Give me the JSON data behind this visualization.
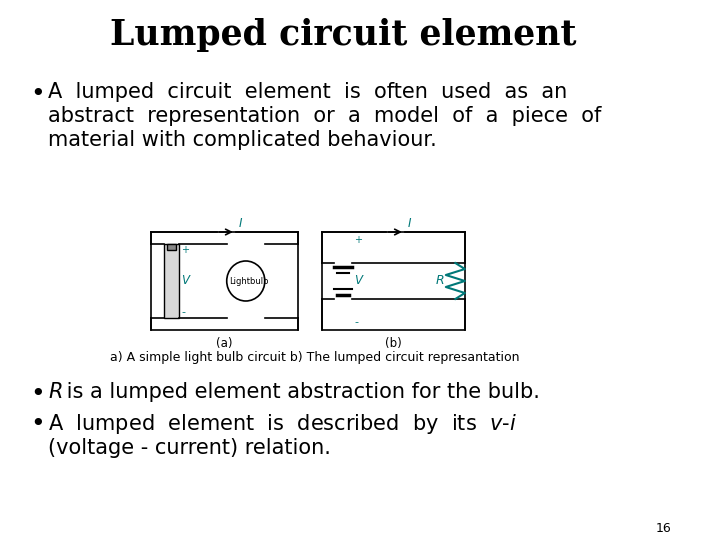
{
  "title": "Lumped circuit element",
  "title_fontsize": 25,
  "bg_color": "#ffffff",
  "text_color": "#000000",
  "green_color": "#007878",
  "bullet_fontsize": 15,
  "caption_fontsize": 9,
  "page_number": "16",
  "bullet1_line1": "A  lumped  circuit  element  is  often  used  as  an",
  "bullet1_line2": "abstract  representation  or  a  model  of  a  piece  of",
  "bullet1_line3": "material with complicated behaviour.",
  "bullet2_post": " is a lumped element abstraction for the bulb.",
  "bullet3_line1_pre": "A  lumped  element  is  described  by  its  ",
  "bullet3_line2": "(voltage - current) relation.",
  "caption": "a) A simple light bulb circuit b) The lumped circuit represantation"
}
